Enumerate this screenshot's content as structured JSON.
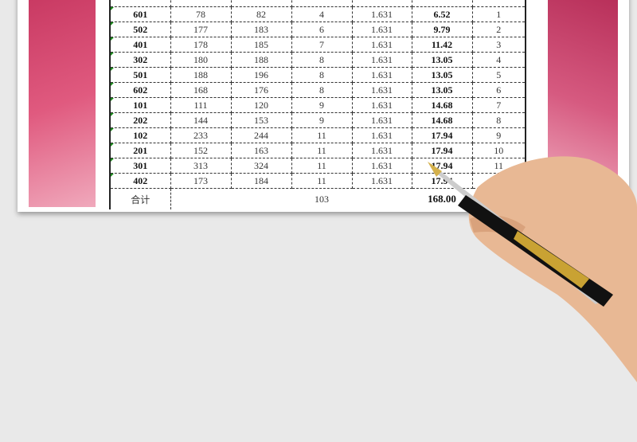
{
  "rows": [
    {
      "room": "601",
      "prev": "78",
      "curr": "82",
      "usage": "4",
      "price": "1.631",
      "amount": "6.52",
      "rank": "1"
    },
    {
      "room": "502",
      "prev": "177",
      "curr": "183",
      "usage": "6",
      "price": "1.631",
      "amount": "9.79",
      "rank": "2"
    },
    {
      "room": "401",
      "prev": "178",
      "curr": "185",
      "usage": "7",
      "price": "1.631",
      "amount": "11.42",
      "rank": "3"
    },
    {
      "room": "302",
      "prev": "180",
      "curr": "188",
      "usage": "8",
      "price": "1.631",
      "amount": "13.05",
      "rank": "4"
    },
    {
      "room": "501",
      "prev": "188",
      "curr": "196",
      "usage": "8",
      "price": "1.631",
      "amount": "13.05",
      "rank": "5"
    },
    {
      "room": "602",
      "prev": "168",
      "curr": "176",
      "usage": "8",
      "price": "1.631",
      "amount": "13.05",
      "rank": "6"
    },
    {
      "room": "101",
      "prev": "111",
      "curr": "120",
      "usage": "9",
      "price": "1.631",
      "amount": "14.68",
      "rank": "7"
    },
    {
      "room": "202",
      "prev": "144",
      "curr": "153",
      "usage": "9",
      "price": "1.631",
      "amount": "14.68",
      "rank": "8"
    },
    {
      "room": "102",
      "prev": "233",
      "curr": "244",
      "usage": "11",
      "price": "1.631",
      "amount": "17.94",
      "rank": "9"
    },
    {
      "room": "201",
      "prev": "152",
      "curr": "163",
      "usage": "11",
      "price": "1.631",
      "amount": "17.94",
      "rank": "10"
    },
    {
      "room": "301",
      "prev": "313",
      "curr": "324",
      "usage": "11",
      "price": "1.631",
      "amount": "17.94",
      "rank": "11"
    },
    {
      "room": "402",
      "prev": "173",
      "curr": "184",
      "usage": "11",
      "price": "1.631",
      "amount": "17.94",
      "rank": ""
    }
  ],
  "total": {
    "label": "合计",
    "usage": "103",
    "amount": "168.00"
  },
  "colors": {
    "accent_pink": "#d64a72",
    "tick_green": "#1a8a1a"
  }
}
